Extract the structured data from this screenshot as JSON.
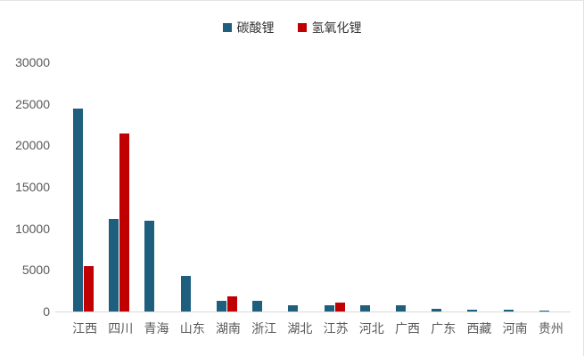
{
  "chart_data": {
    "type": "bar",
    "title": "",
    "xlabel": "",
    "ylabel": "",
    "categories": [
      "江西",
      "四川",
      "青海",
      "山东",
      "湖南",
      "浙江",
      "湖北",
      "江苏",
      "河北",
      "广西",
      "广东",
      "西藏",
      "河南",
      "贵州"
    ],
    "series": [
      {
        "name": "碳酸锂",
        "color": "#1E5F7D",
        "values": [
          24400,
          11100,
          10900,
          4300,
          1300,
          1300,
          800,
          800,
          800,
          700,
          350,
          200,
          200,
          150
        ]
      },
      {
        "name": "氢氧化锂",
        "color": "#C00000",
        "values": [
          5500,
          21400,
          0,
          0,
          1800,
          0,
          0,
          1100,
          0,
          0,
          0,
          0,
          0,
          0
        ]
      }
    ],
    "ylim": [
      0,
      30000
    ],
    "yticks": [
      0,
      5000,
      10000,
      15000,
      20000,
      25000,
      30000
    ],
    "grid": false,
    "legend_position": "top-center"
  },
  "colors": {
    "axis_line": "#d9d9d9",
    "tick_text": "#595959",
    "legend_text": "#333333",
    "background": "#ffffff"
  }
}
